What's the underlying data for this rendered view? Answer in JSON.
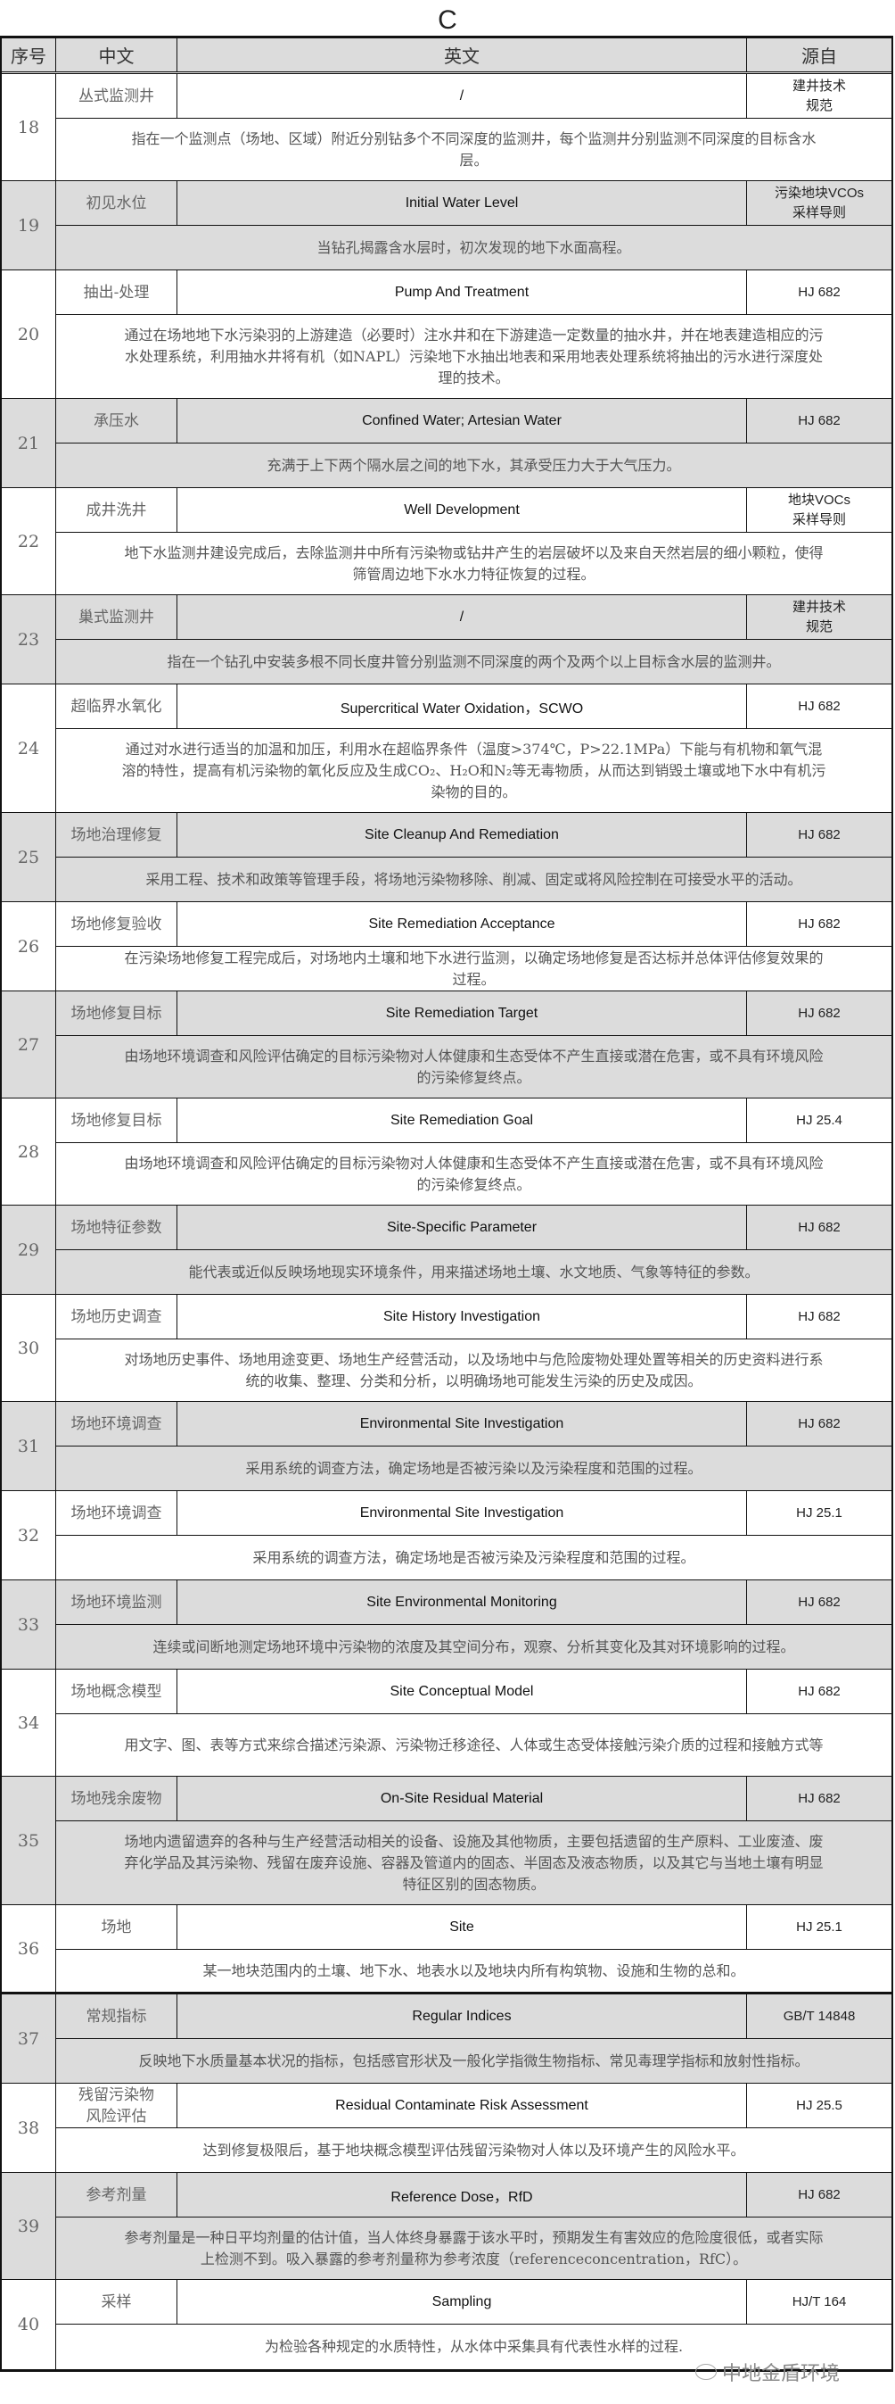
{
  "section_letter": "C",
  "header": {
    "no": "序号",
    "zh": "中文",
    "en": "英文",
    "source": "源自"
  },
  "rows": [
    {
      "no": "18",
      "zh": "丛式监测井",
      "en": "/",
      "source": "建井技术\n规范",
      "desc": "指在一个监测点（场地、区域）附近分别钻多个不同深度的监测井，每个监测井分别监测不同深度的目标含水层。"
    },
    {
      "no": "19",
      "zh": "初见水位",
      "en": "Initial Water Level",
      "source": "污染地块VCOs\n采样导则",
      "desc": "当钻孔揭露含水层时，初次发现的地下水面高程。"
    },
    {
      "no": "20",
      "zh": "抽出-处理",
      "en": "Pump And Treatment",
      "source": "HJ 682",
      "desc": "通过在场地地下水污染羽的上游建造（必要时）注水井和在下游建造一定数量的抽水井，并在地表建造相应的污水处理系统，利用抽水井将有机（如NAPL）污染地下水抽出地表和采用地表处理系统将抽出的污水进行深度处理的技术。"
    },
    {
      "no": "21",
      "zh": "承压水",
      "en": "Confined Water; Artesian Water",
      "source": "HJ 682",
      "desc": "充满于上下两个隔水层之间的地下水，其承受压力大于大气压力。"
    },
    {
      "no": "22",
      "zh": "成井洗井",
      "en": "Well Development",
      "source": "地块VOCs\n采样导则",
      "desc": "地下水监测井建设完成后，去除监测井中所有污染物或钻井产生的岩层破坏以及来自天然岩层的细小颗粒，使得筛管周边地下水水力特征恢复的过程。"
    },
    {
      "no": "23",
      "zh": "巢式监测井",
      "en": "/",
      "source": "建井技术\n规范",
      "desc": "指在一个钻孔中安装多根不同长度井管分别监测不同深度的两个及两个以上目标含水层的监测井。"
    },
    {
      "no": "24",
      "zh": "超临界水氧化",
      "en": "Supercritical Water Oxidation，SCWO",
      "source": "HJ 682",
      "desc": "通过对水进行适当的加温和加压，利用水在超临界条件（温度>374℃，P>22.1MPa）下能与有机物和氧气混溶的特性，提高有机污染物的氧化反应及生成CO₂、H₂O和N₂等无毒物质，从而达到销毁土壤或地下水中有机污染物的目的。"
    },
    {
      "no": "25",
      "zh": "场地治理修复",
      "en": "Site Cleanup And Remediation",
      "source": "HJ 682",
      "desc": "采用工程、技术和政策等管理手段，将场地污染物移除、削减、固定或将风险控制在可接受水平的活动。"
    },
    {
      "no": "26",
      "zh": "场地修复验收",
      "en": "Site Remediation Acceptance",
      "source": "HJ 682",
      "desc": "在污染场地修复工程完成后，对场地内土壤和地下水进行监测，以确定场地修复是否达标并总体评估修复效果的过程。"
    },
    {
      "no": "27",
      "zh": "场地修复目标",
      "en": "Site Remediation Target",
      "source": "HJ 682",
      "desc": "由场地环境调查和风险评估确定的目标污染物对人体健康和生态受体不产生直接或潜在危害，或不具有环境风险的污染修复终点。"
    },
    {
      "no": "28",
      "zh": "场地修复目标",
      "en": "Site Remediation Goal",
      "source": "HJ 25.4",
      "desc": "由场地环境调查和风险评估确定的目标污染物对人体健康和生态受体不产生直接或潜在危害，或不具有环境风险的污染修复终点。"
    },
    {
      "no": "29",
      "zh": "场地特征参数",
      "en": "Site-Specific Parameter",
      "source": "HJ 682",
      "desc": "能代表或近似反映场地现实环境条件，用来描述场地土壤、水文地质、气象等特征的参数。"
    },
    {
      "no": "30",
      "zh": "场地历史调查",
      "en": "Site History Investigation",
      "source": "HJ 682",
      "desc": "对场地历史事件、场地用途变更、场地生产经营活动，以及场地中与危险废物处理处置等相关的历史资料进行系统的收集、整理、分类和分析，以明确场地可能发生污染的历史及成因。"
    },
    {
      "no": "31",
      "zh": "场地环境调查",
      "en": "Environmental Site Investigation",
      "source": "HJ 682",
      "desc": "采用系统的调查方法，确定场地是否被污染以及污染程度和范围的过程。"
    },
    {
      "no": "32",
      "zh": "场地环境调查",
      "en": "Environmental Site Investigation",
      "source": "HJ 25.1",
      "desc": "采用系统的调查方法，确定场地是否被污染及污染程度和范围的过程。"
    },
    {
      "no": "33",
      "zh": "场地环境监测",
      "en": "Site Environmental Monitoring",
      "source": "HJ 682",
      "desc": "连续或间断地测定场地环境中污染物的浓度及其空间分布，观察、分析其变化及其对环境影响的过程。"
    },
    {
      "no": "34",
      "zh": "场地概念模型",
      "en": "Site Conceptual Model",
      "source": "HJ 682",
      "desc": "用文字、图、表等方式来综合描述污染源、污染物迁移途径、人体或生态受体接触污染介质的过程和接触方式等"
    },
    {
      "no": "35",
      "zh": "场地残余废物",
      "en": "On-Site Residual Material",
      "source": "HJ 682",
      "desc": "场地内遗留遗弃的各种与生产经营活动相关的设备、设施及其他物质，主要包括遗留的生产原料、工业废渣、废弃化学品及其污染物、残留在废弃设施、容器及管道内的固态、半固态及液态物质，以及其它与当地土壤有明显特征区别的固态物质。"
    },
    {
      "no": "36",
      "zh": "场地",
      "en": "Site",
      "source": "HJ 25.1",
      "desc": "某一地块范围内的土壤、地下水、地表水以及地块内所有构筑物、设施和生物的总和。"
    },
    {
      "no": "37",
      "zh": "常规指标",
      "en": "Regular Indices",
      "source": "GB/T 14848",
      "desc": "反映地下水质量基本状况的指标，包括感官形状及一般化学指微生物指标、常见毒理学指标和放射性指标。"
    },
    {
      "no": "38",
      "zh": "残留污染物\n风险评估",
      "en": "Residual Contaminate Risk Assessment",
      "source": "HJ 25.5",
      "desc": "达到修复极限后，基于地块概念模型评估残留污染物对人体以及环境产生的风险水平。"
    },
    {
      "no": "39",
      "zh": "参考剂量",
      "en": "Reference Dose，RfD",
      "source": "HJ 682",
      "desc": "参考剂量是一种日平均剂量的估计值，当人体终身暴露于该水平时，预期发生有害效应的危险度很低，或者实际上检测不到。吸入暴露的参考剂量称为参考浓度（referenceconcentration，RfC）。"
    },
    {
      "no": "40",
      "zh": "采样",
      "en": "Sampling",
      "source": "HJ/T 164",
      "desc": "为检验各种规定的水质特性，从水体中采集具有代表性水样的过程."
    }
  ],
  "watermark": "中地金盾环境",
  "colors": {
    "shaded_row": "#dcdcdc",
    "border": "#111111"
  }
}
